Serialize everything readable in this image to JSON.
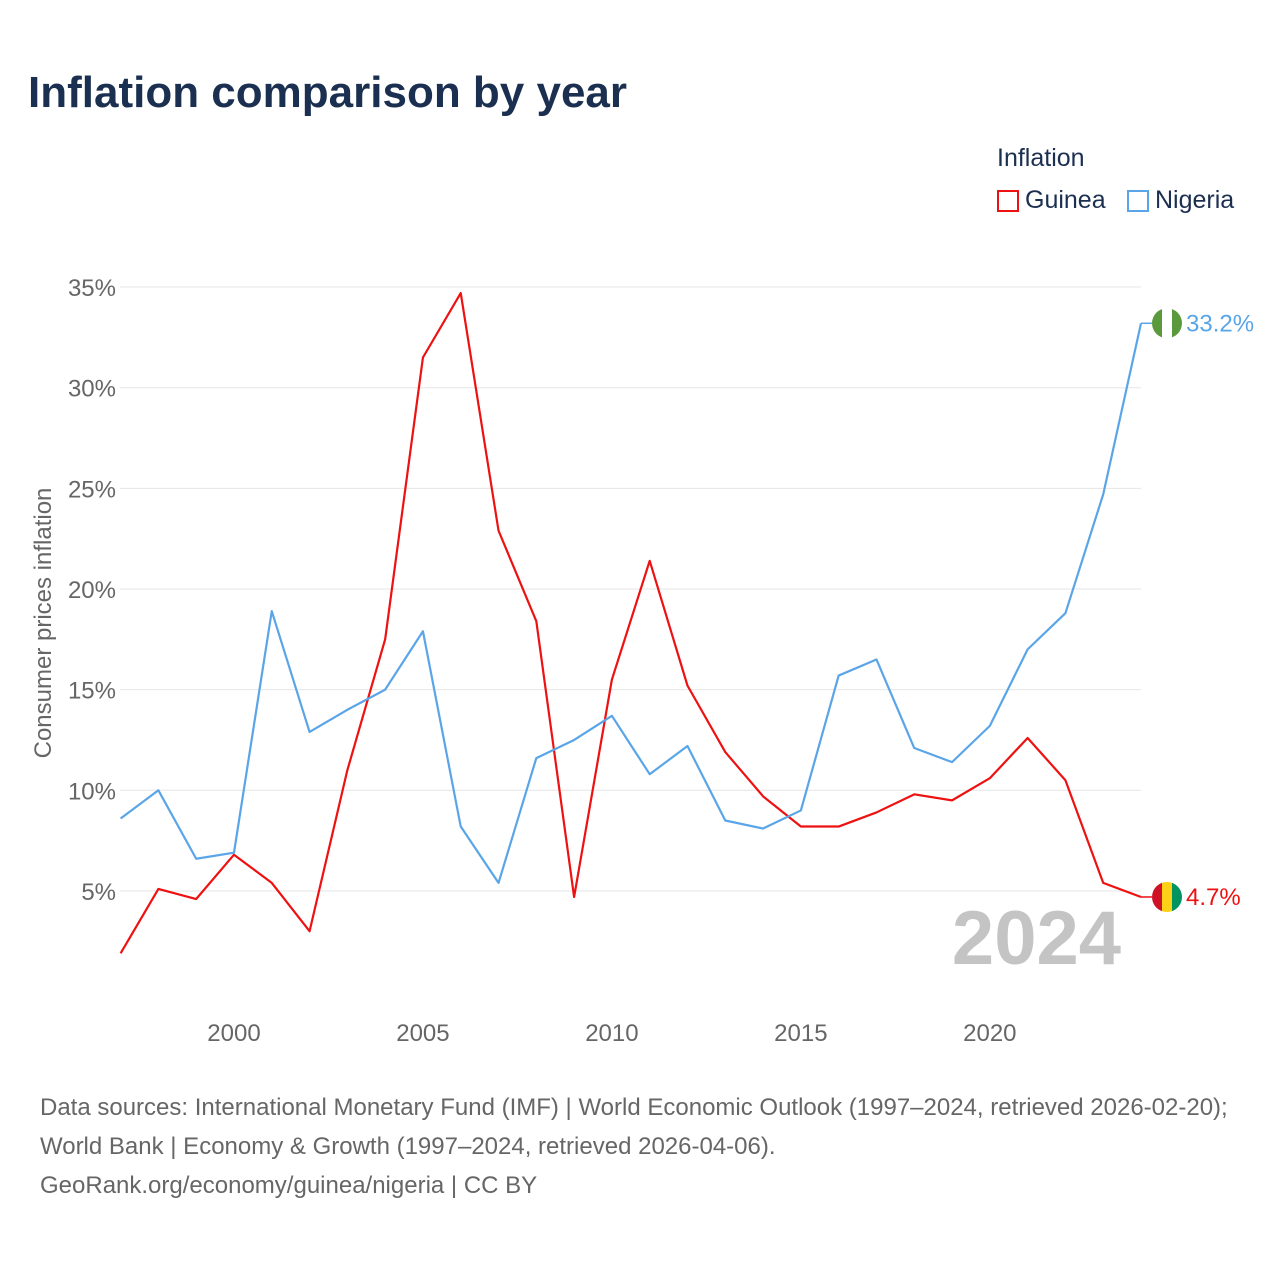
{
  "title": "Inflation comparison by year",
  "legend": {
    "title": "Inflation",
    "items": [
      {
        "name": "Guinea",
        "color": "#ee1111"
      },
      {
        "name": "Nigeria",
        "color": "#5aa5e8"
      }
    ]
  },
  "year_watermark": "2024",
  "source_lines": [
    "Data sources: International Monetary Fund (IMF) | World Economic Outlook (1997–2024, retrieved 2026-02-20); World Bank | Economy & Growth (1997–2024, retrieved 2026-04-06).",
    "GeoRank.org/economy/guinea/nigeria | CC BY"
  ],
  "chart_data": {
    "type": "line",
    "title": "Inflation comparison by year",
    "xlabel": "",
    "ylabel": "Consumer prices inflation",
    "x": [
      1997,
      1998,
      1999,
      2000,
      2001,
      2002,
      2003,
      2004,
      2005,
      2006,
      2007,
      2008,
      2009,
      2010,
      2011,
      2012,
      2013,
      2014,
      2015,
      2016,
      2017,
      2018,
      2019,
      2020,
      2021,
      2022,
      2023,
      2024
    ],
    "xticks": [
      2000,
      2005,
      2010,
      2015,
      2020
    ],
    "yticks": [
      5,
      10,
      15,
      20,
      25,
      30,
      35
    ],
    "ytick_labels": [
      "5%",
      "10%",
      "15%",
      "20%",
      "25%",
      "30%",
      "35%"
    ],
    "xlim": [
      1997,
      2024
    ],
    "ylim": [
      0,
      35
    ],
    "grid": true,
    "legend_position": "top-right",
    "series": [
      {
        "name": "Guinea",
        "color": "#ee1111",
        "end_label": "4.7%",
        "values": [
          1.9,
          5.1,
          4.6,
          6.8,
          5.4,
          3.0,
          11.0,
          17.5,
          31.5,
          34.7,
          22.9,
          18.4,
          4.7,
          15.5,
          21.4,
          15.2,
          11.9,
          9.7,
          8.2,
          8.2,
          8.9,
          9.8,
          9.5,
          10.6,
          12.6,
          10.5,
          5.4,
          4.7
        ]
      },
      {
        "name": "Nigeria",
        "color": "#5aa5e8",
        "end_label": "33.2%",
        "values": [
          8.6,
          10.0,
          6.6,
          6.9,
          18.9,
          12.9,
          14.0,
          15.0,
          17.9,
          8.2,
          5.4,
          11.6,
          12.5,
          13.7,
          10.8,
          12.2,
          8.5,
          8.1,
          9.0,
          15.7,
          16.5,
          12.1,
          11.4,
          13.2,
          17.0,
          18.8,
          24.7,
          33.2
        ]
      }
    ]
  }
}
